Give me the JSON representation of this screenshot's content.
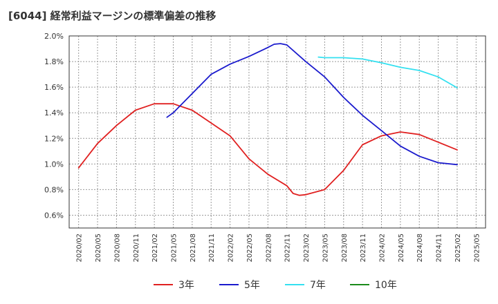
{
  "chart_data": {
    "type": "line",
    "title": "[6044]  経常利益マージンの標準偏差の推移",
    "xlabel": "",
    "ylabel": "",
    "ylim": [
      0.5,
      2.0
    ],
    "yticks": [
      "2.0%",
      "1.8%",
      "1.6%",
      "1.4%",
      "1.2%",
      "1.0%",
      "0.8%",
      "0.6%"
    ],
    "categories": [
      "2020/02",
      "2020/05",
      "2020/08",
      "2020/11",
      "2021/02",
      "2021/05",
      "2021/08",
      "2021/11",
      "2022/02",
      "2022/05",
      "2022/08",
      "2022/11",
      "2023/02",
      "2023/05",
      "2023/08",
      "2023/11",
      "2024/02",
      "2024/05",
      "2024/08",
      "2024/11",
      "2025/02",
      "2025/05"
    ],
    "grid": true,
    "legend_position": "bottom",
    "series": [
      {
        "name": "3年",
        "color": "#e02020",
        "points": [
          [
            "2020/02",
            0.97
          ],
          [
            "2020/05",
            1.16
          ],
          [
            "2020/08",
            1.3
          ],
          [
            "2020/11",
            1.42
          ],
          [
            "2021/02",
            1.47
          ],
          [
            "2021/05",
            1.47
          ],
          [
            "2021/08",
            1.42
          ],
          [
            "2021/11",
            1.32
          ],
          [
            "2022/02",
            1.22
          ],
          [
            "2022/05",
            1.04
          ],
          [
            "2022/08",
            0.92
          ],
          [
            "2022/11",
            0.83
          ],
          [
            "2022/12",
            0.77
          ],
          [
            "2023/01",
            0.755
          ],
          [
            "2023/02",
            0.76
          ],
          [
            "2023/05",
            0.8
          ],
          [
            "2023/08",
            0.95
          ],
          [
            "2023/11",
            1.15
          ],
          [
            "2024/02",
            1.22
          ],
          [
            "2024/05",
            1.25
          ],
          [
            "2024/08",
            1.23
          ],
          [
            "2024/11",
            1.17
          ],
          [
            "2025/02",
            1.11
          ]
        ]
      },
      {
        "name": "5年",
        "color": "#1a1acd",
        "points": [
          [
            "2021/04",
            1.365
          ],
          [
            "2021/05",
            1.4
          ],
          [
            "2021/08",
            1.55
          ],
          [
            "2021/11",
            1.7
          ],
          [
            "2022/02",
            1.78
          ],
          [
            "2022/05",
            1.84
          ],
          [
            "2022/08",
            1.91
          ],
          [
            "2022/09",
            1.935
          ],
          [
            "2022/10",
            1.94
          ],
          [
            "2022/11",
            1.93
          ],
          [
            "2023/02",
            1.8
          ],
          [
            "2023/05",
            1.68
          ],
          [
            "2023/08",
            1.52
          ],
          [
            "2023/11",
            1.38
          ],
          [
            "2024/02",
            1.26
          ],
          [
            "2024/05",
            1.14
          ],
          [
            "2024/08",
            1.06
          ],
          [
            "2024/11",
            1.01
          ],
          [
            "2025/02",
            0.995
          ]
        ]
      },
      {
        "name": "7年",
        "color": "#33e0f0",
        "points": [
          [
            "2023/04",
            1.835
          ],
          [
            "2023/05",
            1.83
          ],
          [
            "2023/08",
            1.83
          ],
          [
            "2023/11",
            1.82
          ],
          [
            "2024/02",
            1.79
          ],
          [
            "2024/05",
            1.755
          ],
          [
            "2024/08",
            1.73
          ],
          [
            "2024/11",
            1.68
          ],
          [
            "2025/02",
            1.595
          ]
        ]
      },
      {
        "name": "10年",
        "color": "#1a8a1a",
        "points": []
      }
    ]
  }
}
